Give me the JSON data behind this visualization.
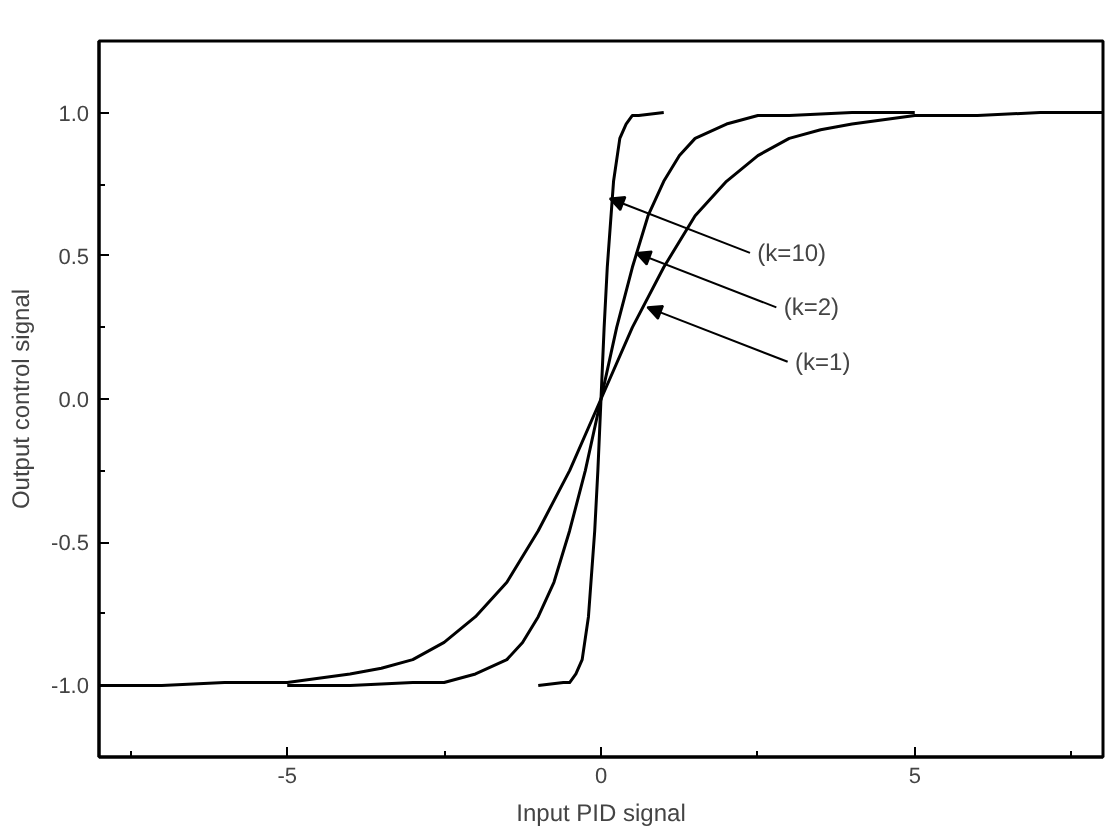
{
  "chart_data": {
    "type": "line",
    "xlabel": "Input PID signal",
    "ylabel": "Output control signal",
    "xlim": [
      -8,
      8
    ],
    "ylim": [
      -1.25,
      1.25
    ],
    "xticks": [
      {
        "value": -7.5,
        "label": null
      },
      -5,
      {
        "value": -2.5,
        "label": null
      },
      0,
      {
        "value": 2.5,
        "label": null
      },
      5,
      {
        "value": 7.5,
        "label": null
      }
    ],
    "yticks": [
      {
        "value": -1.25,
        "label": null
      },
      {
        "value": -1,
        "label": "-1.0"
      },
      {
        "value": -0.75,
        "label": null
      },
      -0.5,
      {
        "value": -0.25,
        "label": null
      },
      {
        "value": 0,
        "label": "0.0"
      },
      {
        "value": 0.25,
        "label": null
      },
      0.5,
      {
        "value": 0.75,
        "label": null
      },
      {
        "value": 1,
        "label": "1.0"
      },
      {
        "value": 1.25,
        "label": null
      }
    ],
    "grid": false,
    "marker": "none",
    "line_style": "solid",
    "series": [
      {
        "color": "#000000",
        "x": [
          -8,
          -7,
          -6,
          -5,
          -4,
          -3.5,
          -3,
          -2.5,
          -2,
          -1.5,
          -1,
          -0.5,
          0,
          0.5,
          1,
          1.5,
          2,
          2.5,
          3,
          3.5,
          4,
          5,
          6,
          7,
          8
        ],
        "values": [
          -1.0,
          -1.0,
          -0.99,
          -0.99,
          -0.96,
          -0.94,
          -0.91,
          -0.85,
          -0.76,
          -0.64,
          -0.46,
          -0.25,
          0,
          0.25,
          0.46,
          0.64,
          0.76,
          0.85,
          0.91,
          0.94,
          0.96,
          0.99,
          0.99,
          1.0,
          1.0
        ]
      },
      {
        "color": "#000000",
        "x": [
          -5,
          -4,
          -3,
          -2.5,
          -2,
          -1.5,
          -1.25,
          -1,
          -0.75,
          -0.5,
          -0.25,
          0,
          0.25,
          0.5,
          0.75,
          1,
          1.25,
          1.5,
          2,
          2.5,
          3,
          4,
          5
        ],
        "values": [
          -1.0,
          -1.0,
          -0.99,
          -0.99,
          -0.96,
          -0.91,
          -0.85,
          -0.76,
          -0.64,
          -0.46,
          -0.25,
          0,
          0.25,
          0.46,
          0.64,
          0.76,
          0.85,
          0.91,
          0.96,
          0.99,
          0.99,
          1.0,
          1.0
        ]
      },
      {
        "color": "#000000",
        "x": [
          -1,
          -0.6,
          -0.5,
          -0.4,
          -0.3,
          -0.2,
          -0.1,
          -0.05,
          0,
          0.05,
          0.1,
          0.2,
          0.3,
          0.4,
          0.5,
          0.6,
          1
        ],
        "values": [
          -1.0,
          -0.99,
          -0.99,
          -0.96,
          -0.91,
          -0.76,
          -0.46,
          -0.25,
          0,
          0.25,
          0.46,
          0.76,
          0.91,
          0.96,
          0.99,
          0.99,
          1.0
        ]
      }
    ],
    "annotations": [
      {
        "text": "(k=10)",
        "x": 0.14,
        "y": 0.7
      },
      {
        "text": "(k=2)",
        "x": 0.56,
        "y": 0.51
      },
      {
        "text": "(k=1)",
        "x": 0.74,
        "y": 0.32
      }
    ]
  }
}
